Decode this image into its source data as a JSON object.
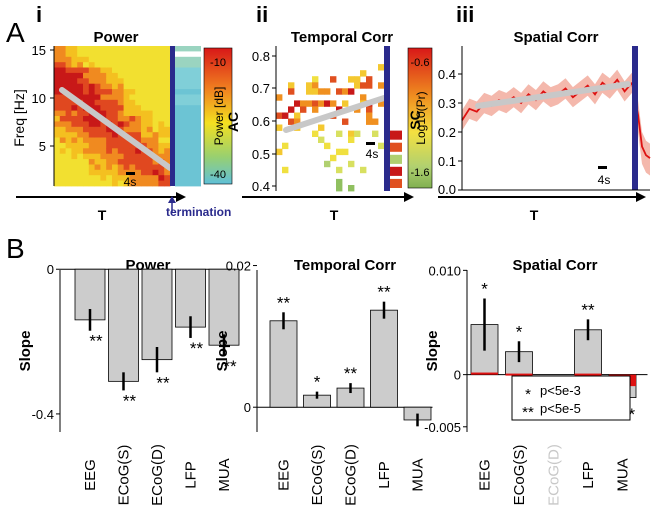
{
  "panels": {
    "A": "A",
    "B": "B",
    "sub_i": "i",
    "sub_ii": "ii",
    "sub_iii": "iii"
  },
  "top": {
    "power": {
      "title": "Power",
      "ylabel": "Freq [Hz]",
      "yticks": [
        "15",
        "10",
        "5"
      ],
      "xlabel": "T",
      "scalebar": "4s",
      "colorbar_label": "Power [dB]",
      "colorbar_ticks": [
        "-10",
        "-40"
      ],
      "annotation": "termination"
    },
    "temporal": {
      "title": "Temporal Corr",
      "ylabel": "AC",
      "yticks": [
        "0.8",
        "0.7",
        "0.6",
        "0.5",
        "0.4"
      ],
      "xlabel": "T",
      "scalebar": "4s",
      "colorbar_label": "Log10(Pr)",
      "colorbar_ticks": [
        "-0.6",
        "-1.6"
      ]
    },
    "spatial": {
      "title": "Spatial Corr",
      "ylabel": "SC",
      "yticks": [
        "0.4",
        "0.3",
        "0.2",
        "0.1",
        "0.0"
      ],
      "xlabel": "T",
      "scalebar": "4s"
    }
  },
  "colors": {
    "bar": "#cccccc",
    "red": "#dd1111",
    "termination": "#2a2a8c",
    "trend": "#c8c8c8"
  },
  "chart_data": [
    {
      "type": "bar",
      "title": "Power",
      "ylabel": "Slope",
      "yticks": [
        "0",
        "-0.4"
      ],
      "ylim": [
        -0.45,
        0.02
      ],
      "categories": [
        "EEG",
        "ECoG(S)",
        "ECoG(D)",
        "LFP",
        "MUA"
      ],
      "values": [
        -0.14,
        -0.31,
        -0.25,
        -0.16,
        -0.21
      ],
      "errors": [
        0.03,
        0.025,
        0.035,
        0.03,
        0.03
      ],
      "significance": [
        "**",
        "**",
        "**",
        "**",
        "**"
      ]
    },
    {
      "type": "bar",
      "title": "Temporal Corr",
      "ylabel": "Slope",
      "yticks": [
        "0.02",
        "0"
      ],
      "ylim": [
        -0.0035,
        0.0205
      ],
      "categories": [
        "EEG",
        "ECoG(S)",
        "ECoG(D)",
        "LFP",
        "MUA"
      ],
      "values": [
        0.0122,
        0.0017,
        0.0027,
        0.0137,
        -0.0018
      ],
      "errors": [
        0.0012,
        0.0005,
        0.0007,
        0.0012,
        0.0009
      ],
      "significance": [
        "**",
        "*",
        "**",
        "**",
        ""
      ]
    },
    {
      "type": "bar",
      "title": "Spatial Corr",
      "ylabel": "Slope",
      "yticks": [
        "0.010",
        "0",
        "-0.005"
      ],
      "ylim": [
        -0.0055,
        0.0108
      ],
      "categories": [
        "EEG",
        "ECoG(S)",
        "ECoG(D)",
        "LFP",
        "MUA"
      ],
      "values": [
        0.0048,
        0.0022,
        0,
        0.0043,
        -0.0022
      ],
      "red_values": [
        0.0002,
        0.0001,
        0,
        0.0001,
        -0.0011
      ],
      "errors": [
        0.0025,
        0.001,
        0,
        0.001,
        0.0006
      ],
      "significance": [
        "*",
        "*",
        "",
        "**",
        "**"
      ],
      "legend": [
        {
          "mark": "*",
          "text": "p<5e-3"
        },
        {
          "mark": "**",
          "text": "p<5e-5"
        }
      ]
    }
  ]
}
